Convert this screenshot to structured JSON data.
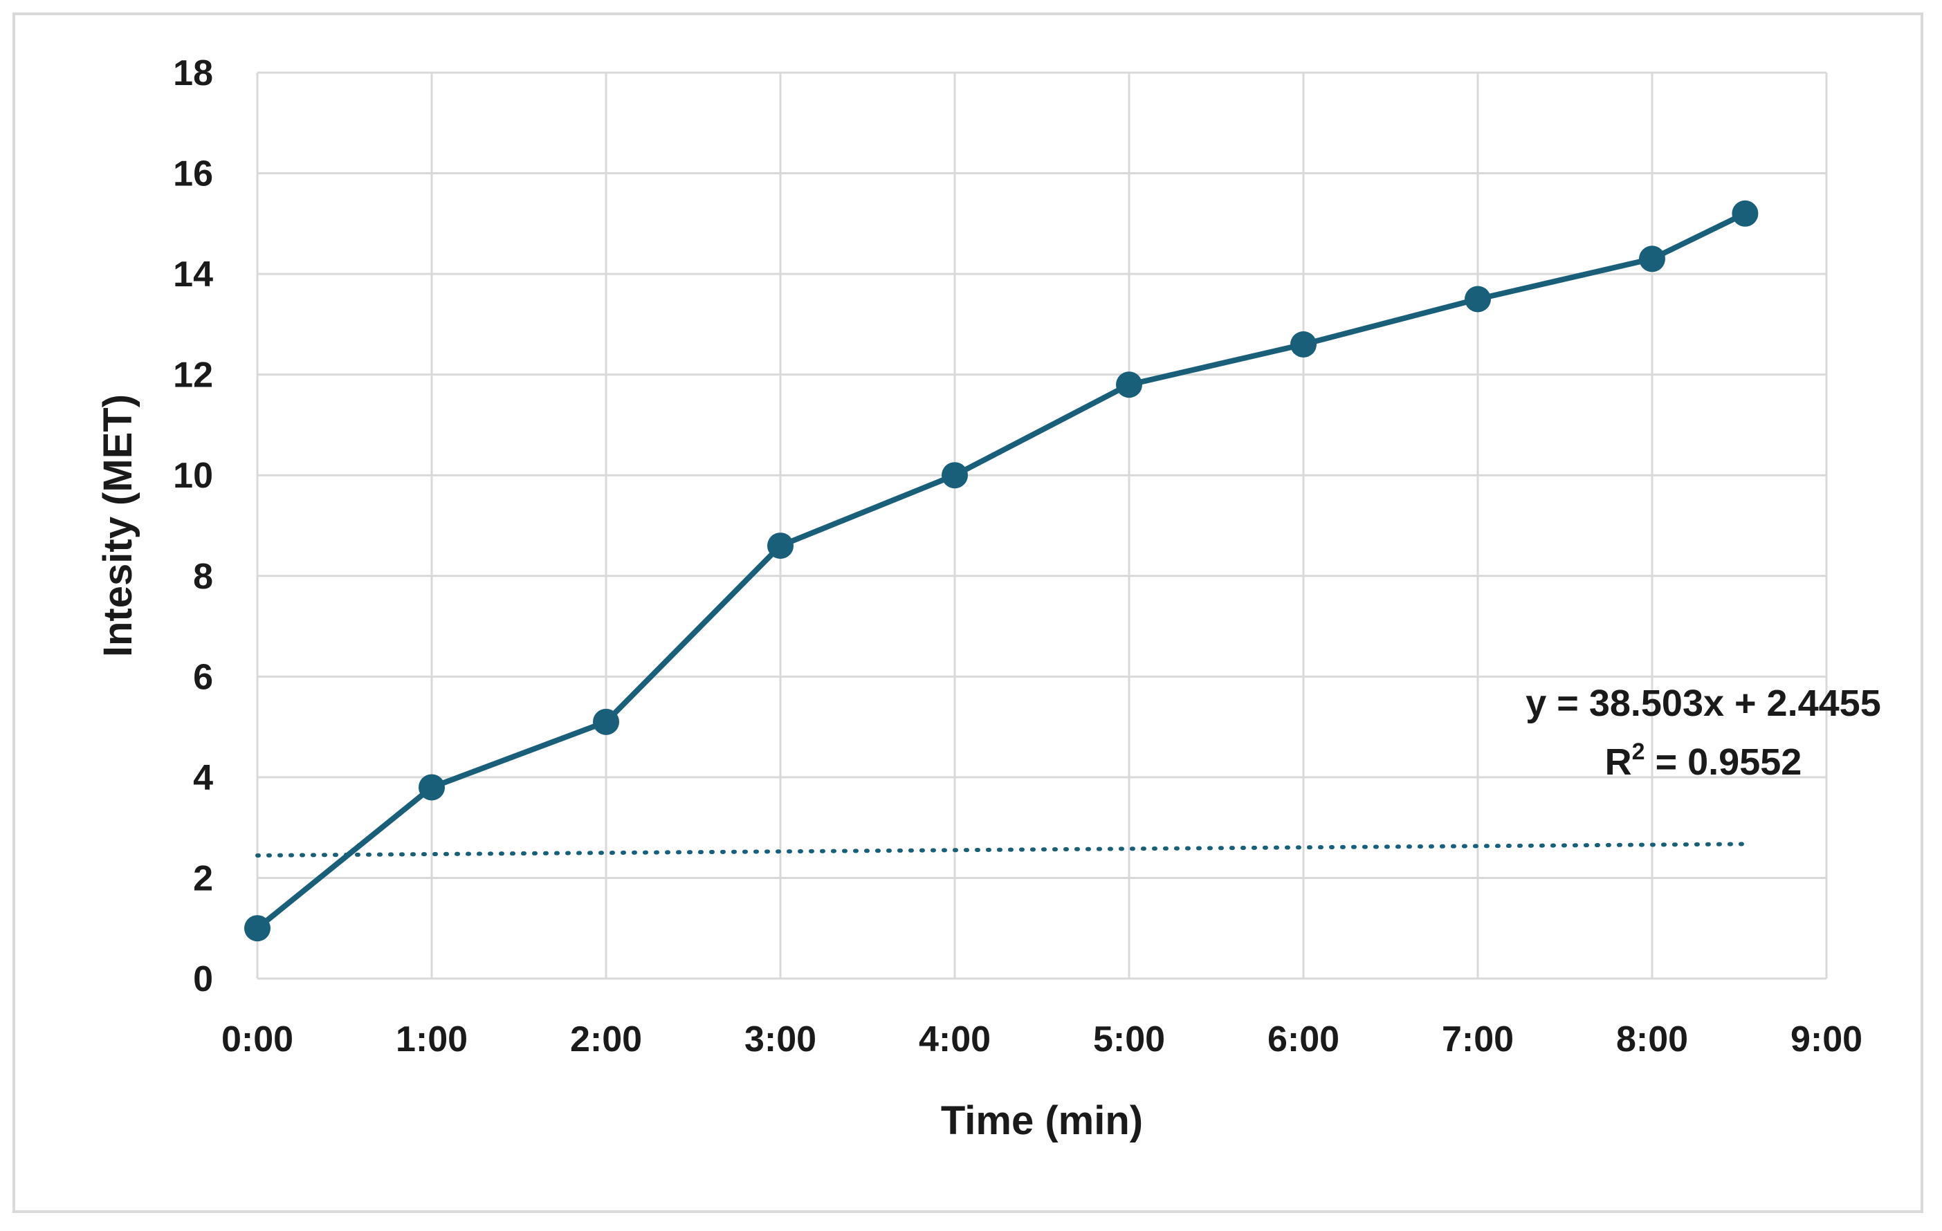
{
  "chart_data": {
    "type": "line",
    "xlabel": "Time (min)",
    "ylabel": "Intesity (MET)",
    "x_tick_labels": [
      "0:00",
      "1:00",
      "2:00",
      "3:00",
      "4:00",
      "5:00",
      "6:00",
      "7:00",
      "8:00",
      "9:00"
    ],
    "y_tick_labels": [
      "0",
      "2",
      "4",
      "6",
      "8",
      "10",
      "12",
      "14",
      "16",
      "18"
    ],
    "xlim": [
      "0:00",
      "9:00"
    ],
    "ylim": [
      0,
      18
    ],
    "grid": true,
    "series": [
      {
        "x": [
          "0:00",
          "1:00",
          "2:00",
          "3:00",
          "4:00",
          "5:00",
          "6:00",
          "7:00",
          "8:00",
          "8:32"
        ],
        "values": [
          1.0,
          3.8,
          5.1,
          8.6,
          10.0,
          11.8,
          12.6,
          13.5,
          14.3,
          15.2
        ],
        "color": "#1a5f7a"
      }
    ],
    "trendline": {
      "style": "dotted",
      "color": "#1a5f7a",
      "x_range": [
        "0:00",
        "8:32"
      ],
      "slope_per_day": 38.503,
      "intercept": 2.4455,
      "equation_text": "y = 38.503x + 2.4455",
      "r2_label": "R",
      "r2_sup": "2",
      "r2_value": " = 0.9552"
    }
  }
}
